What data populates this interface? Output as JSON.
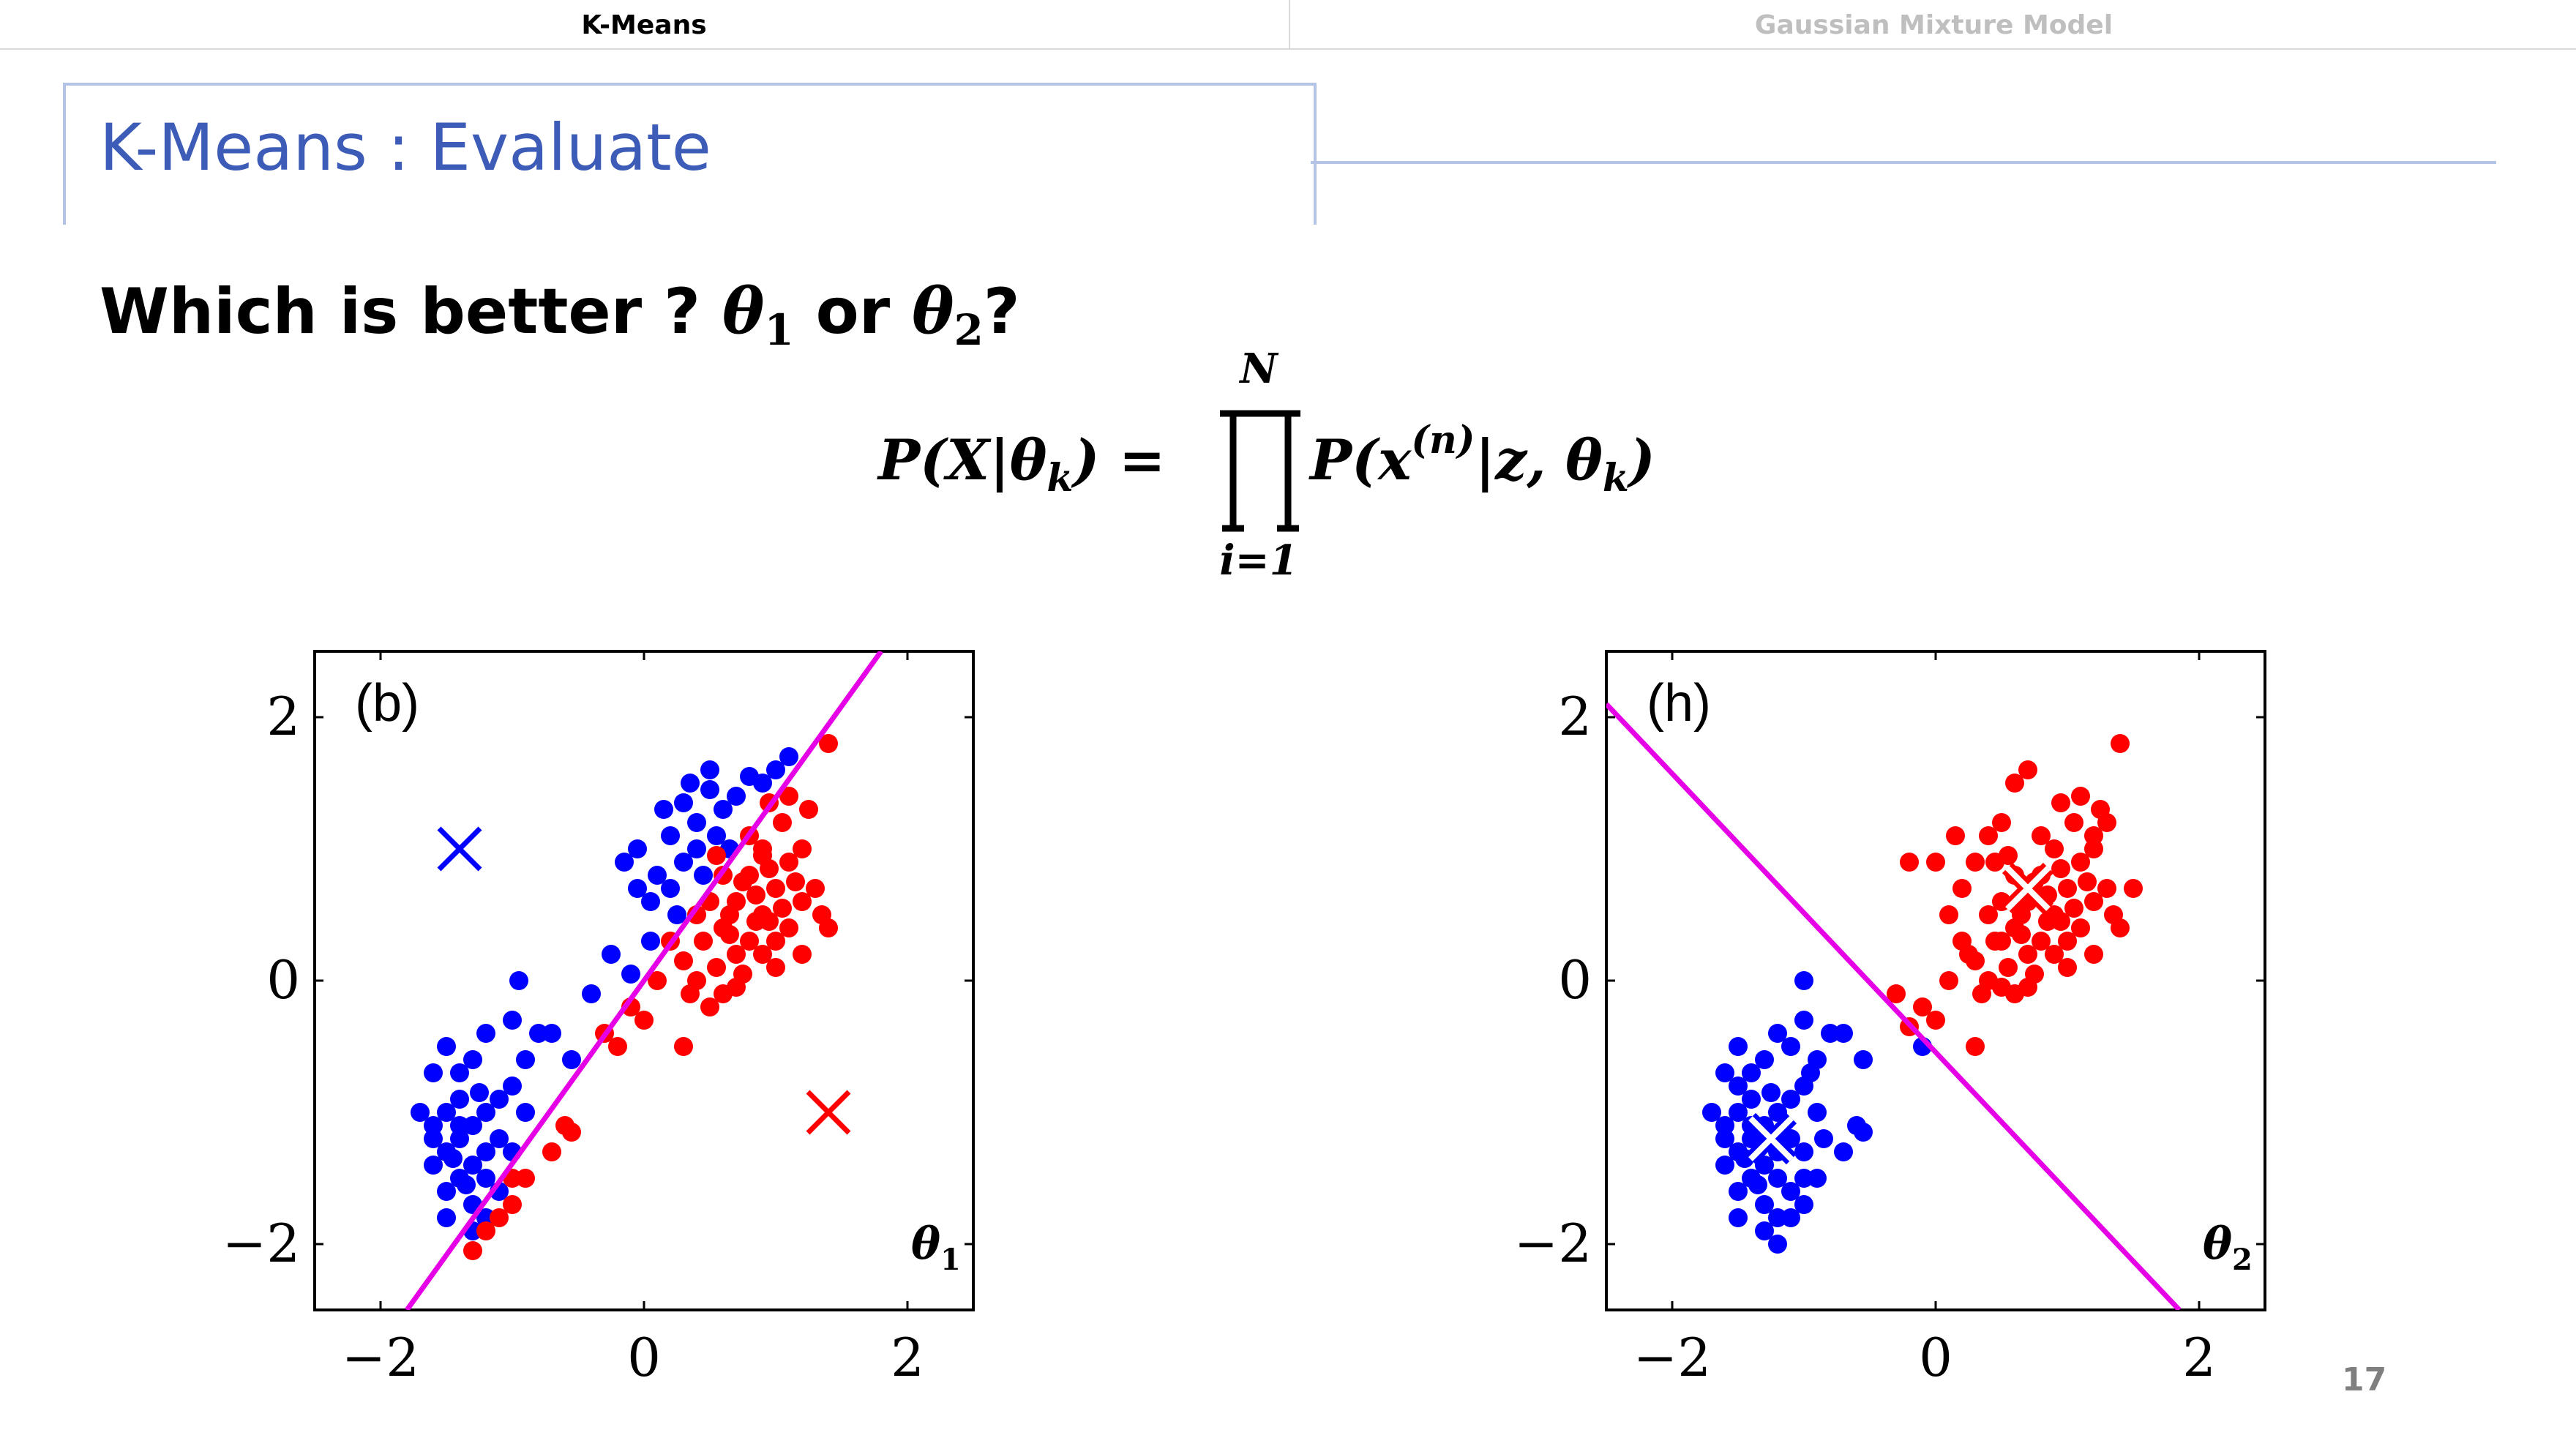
{
  "tabs": [
    {
      "label": "K-Means",
      "active": true
    },
    {
      "label": "Gaussian Mixture Model",
      "active": false
    }
  ],
  "title": "K-Means : Evaluate",
  "question": {
    "text": "Which is better ? ",
    "theta1": "θ",
    "sub1": "1",
    "or": " or ",
    "theta2": "θ",
    "sub2": "2",
    "end": "?"
  },
  "formula": {
    "lhs": "P(X|θ",
    "lhs_sub": "k",
    "eq": ") =",
    "upper": "N",
    "lower": "i=1",
    "rhs1": "P(x",
    "rhs_sup": "(n)",
    "rhs2": "|z, θ",
    "rhs_sub": "k",
    "rhs_end": ")"
  },
  "page_number": "17",
  "colors": {
    "blue": "#0000ff",
    "red": "#ff0000",
    "boundary": "#e600e6",
    "title": "#3d5cb7"
  },
  "chart_data": [
    {
      "type": "scatter",
      "panel_label": "(b)",
      "corner_label": "θ",
      "corner_sub": "1",
      "xlim": [
        -2.5,
        2.5
      ],
      "ylim": [
        -2.5,
        2.5
      ],
      "xticks": [
        "−2",
        "0",
        "2"
      ],
      "xtick_values": [
        -2,
        0,
        2
      ],
      "yticks": [
        "−2",
        "0",
        "2"
      ],
      "ytick_values": [
        -2,
        0,
        2
      ],
      "grid": false,
      "boundary": {
        "x1": -1.8,
        "y1": -2.5,
        "x2": 1.8,
        "y2": 2.5
      },
      "centers": [
        {
          "x": -1.4,
          "y": 1.0,
          "cluster": "blue"
        },
        {
          "x": 1.4,
          "y": -1.0,
          "cluster": "red"
        }
      ],
      "series": [
        {
          "cluster": "blue",
          "points": [
            [
              -1.5,
              -1.3
            ],
            [
              -1.4,
              -1.2
            ],
            [
              -1.3,
              -1.4
            ],
            [
              -1.6,
              -1.1
            ],
            [
              -1.2,
              -1.0
            ],
            [
              -1.4,
              -0.9
            ],
            [
              -1.5,
              -1.6
            ],
            [
              -1.3,
              -1.7
            ],
            [
              -1.2,
              -1.5
            ],
            [
              -1.6,
              -1.4
            ],
            [
              -1.1,
              -1.2
            ],
            [
              -1.0,
              -0.8
            ],
            [
              -1.3,
              -0.6
            ],
            [
              -1.5,
              -0.5
            ],
            [
              -1.2,
              -0.4
            ],
            [
              -0.9,
              -0.6
            ],
            [
              -0.8,
              -0.4
            ],
            [
              -1.0,
              -0.3
            ],
            [
              -1.4,
              -0.7
            ],
            [
              -1.7,
              -1.0
            ],
            [
              -1.6,
              -0.7
            ],
            [
              -1.4,
              -1.5
            ],
            [
              -1.3,
              -1.9
            ],
            [
              -1.5,
              -1.8
            ],
            [
              -1.2,
              -1.8
            ],
            [
              -1.1,
              -1.6
            ],
            [
              -1.0,
              -1.3
            ],
            [
              -0.9,
              -1.0
            ],
            [
              -1.2,
              -1.3
            ],
            [
              -1.6,
              -1.2
            ],
            [
              -1.5,
              -1.0
            ],
            [
              -1.4,
              -1.1
            ],
            [
              -1.3,
              -1.1
            ],
            [
              -1.25,
              -0.85
            ],
            [
              -1.45,
              -1.35
            ],
            [
              -1.35,
              -1.55
            ],
            [
              -1.1,
              -0.9
            ],
            [
              -0.95,
              0.0
            ],
            [
              -0.7,
              -0.4
            ],
            [
              -0.55,
              -0.6
            ],
            [
              -0.4,
              -0.1
            ],
            [
              -0.25,
              0.2
            ],
            [
              -0.1,
              0.05
            ],
            [
              -0.15,
              0.9
            ],
            [
              -0.05,
              0.7
            ],
            [
              0.05,
              0.6
            ],
            [
              0.1,
              0.8
            ],
            [
              0.2,
              1.1
            ],
            [
              0.3,
              0.9
            ],
            [
              0.15,
              1.3
            ],
            [
              0.35,
              1.5
            ],
            [
              0.4,
              1.2
            ],
            [
              0.25,
              0.5
            ],
            [
              0.5,
              1.6
            ],
            [
              0.55,
              1.1
            ],
            [
              0.45,
              0.8
            ],
            [
              0.6,
              1.3
            ],
            [
              0.7,
              1.4
            ],
            [
              0.8,
              1.55
            ],
            [
              0.9,
              1.5
            ],
            [
              1.0,
              1.6
            ],
            [
              1.1,
              1.7
            ],
            [
              0.3,
              1.35
            ],
            [
              0.5,
              1.45
            ],
            [
              -0.05,
              1.0
            ],
            [
              0.65,
              1.0
            ],
            [
              0.2,
              0.7
            ],
            [
              0.4,
              1.0
            ],
            [
              0.05,
              0.3
            ]
          ]
        },
        {
          "cluster": "red",
          "points": [
            [
              0.6,
              0.4
            ],
            [
              0.7,
              0.6
            ],
            [
              0.8,
              0.8
            ],
            [
              0.9,
              0.5
            ],
            [
              1.0,
              0.7
            ],
            [
              1.1,
              0.9
            ],
            [
              0.8,
              0.3
            ],
            [
              0.7,
              0.2
            ],
            [
              0.9,
              1.0
            ],
            [
              1.2,
              0.6
            ],
            [
              1.0,
              0.3
            ],
            [
              0.6,
              0.8
            ],
            [
              0.5,
              0.6
            ],
            [
              0.4,
              0.5
            ],
            [
              0.8,
              1.1
            ],
            [
              1.2,
              1.0
            ],
            [
              1.3,
              0.7
            ],
            [
              1.1,
              0.4
            ],
            [
              0.9,
              0.2
            ],
            [
              0.75,
              0.05
            ],
            [
              0.55,
              0.1
            ],
            [
              0.45,
              0.3
            ],
            [
              0.65,
              0.5
            ],
            [
              0.85,
              0.65
            ],
            [
              0.95,
              0.85
            ],
            [
              1.05,
              1.2
            ],
            [
              1.25,
              1.3
            ],
            [
              1.35,
              0.5
            ],
            [
              1.4,
              0.4
            ],
            [
              0.6,
              -0.1
            ],
            [
              0.4,
              0.0
            ],
            [
              0.3,
              0.15
            ],
            [
              0.2,
              0.3
            ],
            [
              0.35,
              -0.1
            ],
            [
              0.5,
              -0.2
            ],
            [
              0.7,
              -0.05
            ],
            [
              1.0,
              0.1
            ],
            [
              1.1,
              1.4
            ],
            [
              0.95,
              1.35
            ],
            [
              1.4,
              1.8
            ],
            [
              0.1,
              0.0
            ],
            [
              -0.1,
              -0.2
            ],
            [
              -0.3,
              -0.4
            ],
            [
              0.0,
              -0.3
            ],
            [
              -0.2,
              -0.5
            ],
            [
              0.3,
              -0.5
            ],
            [
              -0.6,
              -1.1
            ],
            [
              -0.7,
              -1.3
            ],
            [
              -0.9,
              -1.5
            ],
            [
              -1.0,
              -1.5
            ],
            [
              -1.1,
              -1.8
            ],
            [
              -1.2,
              -1.9
            ],
            [
              -1.3,
              -2.05
            ],
            [
              -1.0,
              -1.7
            ],
            [
              -0.55,
              -1.15
            ],
            [
              0.95,
              0.45
            ],
            [
              0.75,
              0.75
            ],
            [
              1.15,
              0.75
            ],
            [
              0.85,
              0.45
            ],
            [
              1.05,
              0.55
            ],
            [
              0.65,
              0.35
            ],
            [
              0.9,
              0.95
            ],
            [
              1.2,
              0.2
            ],
            [
              0.55,
              0.95
            ]
          ]
        }
      ]
    },
    {
      "type": "scatter",
      "panel_label": "(h)",
      "corner_label": "θ",
      "corner_sub": "2",
      "xlim": [
        -2.5,
        2.5
      ],
      "ylim": [
        -2.5,
        2.5
      ],
      "xticks": [
        "−2",
        "0",
        "2"
      ],
      "xtick_values": [
        -2,
        0,
        2
      ],
      "yticks": [
        "−2",
        "0",
        "2"
      ],
      "ytick_values": [
        -2,
        0,
        2
      ],
      "grid": false,
      "boundary": {
        "x1": -2.5,
        "y1": 2.1,
        "x2": 1.85,
        "y2": -2.5
      },
      "centers": [
        {
          "x": -1.25,
          "y": -1.2,
          "cluster": "blue"
        },
        {
          "x": 0.7,
          "y": 0.7,
          "cluster": "red"
        }
      ],
      "series": [
        {
          "cluster": "blue",
          "points": [
            [
              -1.5,
              -1.3
            ],
            [
              -1.4,
              -1.2
            ],
            [
              -1.3,
              -1.4
            ],
            [
              -1.6,
              -1.1
            ],
            [
              -1.2,
              -1.0
            ],
            [
              -1.4,
              -0.9
            ],
            [
              -1.5,
              -1.6
            ],
            [
              -1.3,
              -1.7
            ],
            [
              -1.2,
              -1.5
            ],
            [
              -1.6,
              -1.4
            ],
            [
              -1.1,
              -1.2
            ],
            [
              -1.0,
              -0.8
            ],
            [
              -1.3,
              -0.6
            ],
            [
              -1.5,
              -0.5
            ],
            [
              -1.2,
              -0.4
            ],
            [
              -0.9,
              -0.6
            ],
            [
              -0.8,
              -0.4
            ],
            [
              -1.0,
              -0.3
            ],
            [
              -1.4,
              -0.7
            ],
            [
              -1.7,
              -1.0
            ],
            [
              -1.6,
              -0.7
            ],
            [
              -1.4,
              -1.5
            ],
            [
              -1.3,
              -1.9
            ],
            [
              -1.5,
              -1.8
            ],
            [
              -1.2,
              -1.8
            ],
            [
              -1.1,
              -1.6
            ],
            [
              -1.0,
              -1.3
            ],
            [
              -0.9,
              -1.0
            ],
            [
              -1.2,
              -1.3
            ],
            [
              -1.6,
              -1.2
            ],
            [
              -1.5,
              -1.0
            ],
            [
              -1.4,
              -1.1
            ],
            [
              -1.3,
              -1.1
            ],
            [
              -1.25,
              -0.85
            ],
            [
              -1.45,
              -1.35
            ],
            [
              -1.35,
              -1.55
            ],
            [
              -1.1,
              -0.9
            ],
            [
              -1.0,
              0.0
            ],
            [
              -0.7,
              -0.4
            ],
            [
              -0.55,
              -0.6
            ],
            [
              -0.6,
              -1.1
            ],
            [
              -0.7,
              -1.3
            ],
            [
              -0.9,
              -1.5
            ],
            [
              -1.0,
              -1.5
            ],
            [
              -1.1,
              -1.8
            ],
            [
              -1.2,
              -2.0
            ],
            [
              -1.0,
              -1.7
            ],
            [
              -0.55,
              -1.15
            ],
            [
              -1.1,
              -0.5
            ],
            [
              -0.95,
              -0.7
            ],
            [
              -0.85,
              -1.2
            ],
            [
              -1.5,
              -0.8
            ],
            [
              -0.1,
              -0.5
            ]
          ]
        },
        {
          "cluster": "red",
          "points": [
            [
              0.6,
              0.4
            ],
            [
              0.7,
              0.6
            ],
            [
              0.8,
              0.8
            ],
            [
              0.9,
              0.5
            ],
            [
              1.0,
              0.7
            ],
            [
              1.1,
              0.9
            ],
            [
              0.8,
              0.3
            ],
            [
              0.7,
              0.2
            ],
            [
              0.9,
              1.0
            ],
            [
              1.2,
              0.6
            ],
            [
              1.0,
              0.3
            ],
            [
              0.6,
              0.8
            ],
            [
              0.5,
              0.6
            ],
            [
              0.4,
              0.5
            ],
            [
              0.8,
              1.1
            ],
            [
              1.2,
              1.0
            ],
            [
              1.3,
              0.7
            ],
            [
              1.1,
              0.4
            ],
            [
              0.9,
              0.2
            ],
            [
              0.75,
              0.05
            ],
            [
              0.55,
              0.1
            ],
            [
              0.45,
              0.3
            ],
            [
              0.65,
              0.5
            ],
            [
              0.85,
              0.65
            ],
            [
              0.95,
              0.85
            ],
            [
              1.05,
              1.2
            ],
            [
              1.25,
              1.3
            ],
            [
              1.35,
              0.5
            ],
            [
              1.4,
              0.4
            ],
            [
              0.6,
              -0.1
            ],
            [
              0.4,
              0.0
            ],
            [
              0.3,
              0.15
            ],
            [
              0.2,
              0.3
            ],
            [
              0.35,
              -0.1
            ],
            [
              0.5,
              -0.05
            ],
            [
              0.7,
              -0.05
            ],
            [
              1.0,
              0.1
            ],
            [
              1.1,
              1.4
            ],
            [
              0.95,
              1.35
            ],
            [
              1.4,
              1.8
            ],
            [
              0.1,
              0.0
            ],
            [
              -0.1,
              -0.2
            ],
            [
              -0.3,
              -0.1
            ],
            [
              0.0,
              -0.3
            ],
            [
              -0.2,
              -0.35
            ],
            [
              0.3,
              -0.5
            ],
            [
              0.5,
              1.2
            ],
            [
              0.4,
              1.1
            ],
            [
              0.3,
              0.9
            ],
            [
              0.6,
              1.5
            ],
            [
              0.7,
              1.6
            ],
            [
              0.2,
              0.7
            ],
            [
              0.1,
              0.5
            ],
            [
              0.0,
              0.9
            ],
            [
              -0.2,
              0.9
            ],
            [
              0.15,
              1.1
            ],
            [
              0.45,
              0.9
            ],
            [
              1.2,
              1.1
            ],
            [
              1.3,
              1.2
            ],
            [
              1.5,
              0.7
            ],
            [
              0.95,
              0.45
            ],
            [
              0.75,
              0.75
            ],
            [
              1.15,
              0.75
            ],
            [
              0.85,
              0.45
            ],
            [
              1.05,
              0.55
            ],
            [
              0.65,
              0.35
            ],
            [
              0.55,
              0.95
            ],
            [
              1.2,
              0.2
            ],
            [
              0.25,
              0.2
            ],
            [
              0.5,
              0.3
            ]
          ]
        }
      ]
    }
  ]
}
